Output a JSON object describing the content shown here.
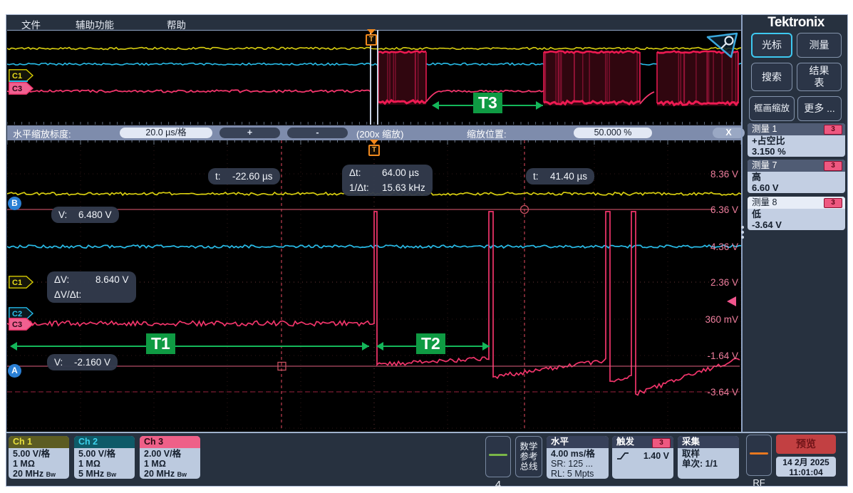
{
  "menu": {
    "items": [
      "文件",
      "辅助功能",
      "帮助"
    ]
  },
  "overview": {
    "trigger_marker": "T",
    "ch1_label": "C1",
    "ch3_label": "C3",
    "t3_label": "T3"
  },
  "zoom_bar": {
    "scale_label": "水平缩放标度:",
    "scale_value": "20.0 µs/格",
    "plus_label": "+",
    "minus_label": "-",
    "factor_label": "(200x 缩放)",
    "position_label": "缩放位置:",
    "position_value": "50.000 %",
    "close_label": "X"
  },
  "main": {
    "trigger_marker": "T",
    "marker_a": "A",
    "marker_b": "B",
    "ch1_label": "C1",
    "ch2_label": "C2",
    "ch3_label": "C3",
    "t1_label": "T1",
    "t2_label": "T2",
    "cursor_a": {
      "label": "t:",
      "value": "-22.60 µs"
    },
    "cursor_b": {
      "label": "t:",
      "value": "41.40 µs"
    },
    "delta": {
      "dt_label": "Δt:",
      "dt_value": "64.00 µs",
      "freq_label": "1/Δt:",
      "freq_value": "15.63 kHz"
    },
    "v_top": {
      "label": "V:",
      "value": "6.480 V"
    },
    "dv": {
      "dv_label": "ΔV:",
      "dv_value": "8.640 V",
      "dvdt_label": "ΔV/Δt:"
    },
    "v_bottom": {
      "label": "V:",
      "value": "-2.160 V"
    },
    "axis_labels": [
      "8.36 V",
      "6.36 V",
      "4.36 V",
      "2.36 V",
      "360 mV",
      "-1.64 V",
      "-3.64 V"
    ]
  },
  "sidebar": {
    "logo": "Tektronix",
    "btn_cursor": "光标",
    "btn_measure": "测量",
    "btn_search": "搜索",
    "btn_results": "结果\n表",
    "btn_zoom": "框画缩放",
    "btn_more": "更多 ...",
    "measurements": [
      {
        "title": "测量 1",
        "badge": "3",
        "name": "+占空比",
        "value": "3.150 %"
      },
      {
        "title": "测量 7",
        "badge": "3",
        "name": "高",
        "value": "6.60 V"
      },
      {
        "title": "测量 8",
        "badge": "3",
        "name": "低",
        "value": "-3.64 V"
      }
    ]
  },
  "bottom": {
    "channels": [
      {
        "name": "Ch 1",
        "scale": "5.00 V/格",
        "impedance": "1 MΩ",
        "bandwidth": "20 MHz",
        "bw_sub": "Bw"
      },
      {
        "name": "Ch 2",
        "scale": "5.00 V/格",
        "impedance": "1 MΩ",
        "bandwidth": "5 MHz",
        "bw_sub": "Bw"
      },
      {
        "name": "Ch 3",
        "scale": "2.00 V/格",
        "impedance": "1 MΩ",
        "bandwidth": "20 MHz",
        "bw_sub": "Bw"
      }
    ],
    "add_channel": "4",
    "math_label": "数学\n参考\n总线",
    "horizontal": {
      "title": "水平",
      "scale": "4.00 ms/格",
      "sample_rate": "SR: 125 ...",
      "record_length": "RL: 5 Mpts"
    },
    "trigger": {
      "title": "触发",
      "badge": "3",
      "level": "1.40 V"
    },
    "acquisition": {
      "title": "采集",
      "mode": "取样",
      "sequence": "单次: 1/1"
    },
    "rf_label": "RF",
    "preview_label": "预览",
    "date": "14 2月 2025",
    "time": "11:01:04"
  },
  "colors": {
    "ch1": "#d8ce10",
    "ch2": "#28bce8",
    "ch3": "#f2356b",
    "annotation": "#0f9a43",
    "trigger_orange": "#f0891e",
    "preview_red": "#c24042"
  }
}
